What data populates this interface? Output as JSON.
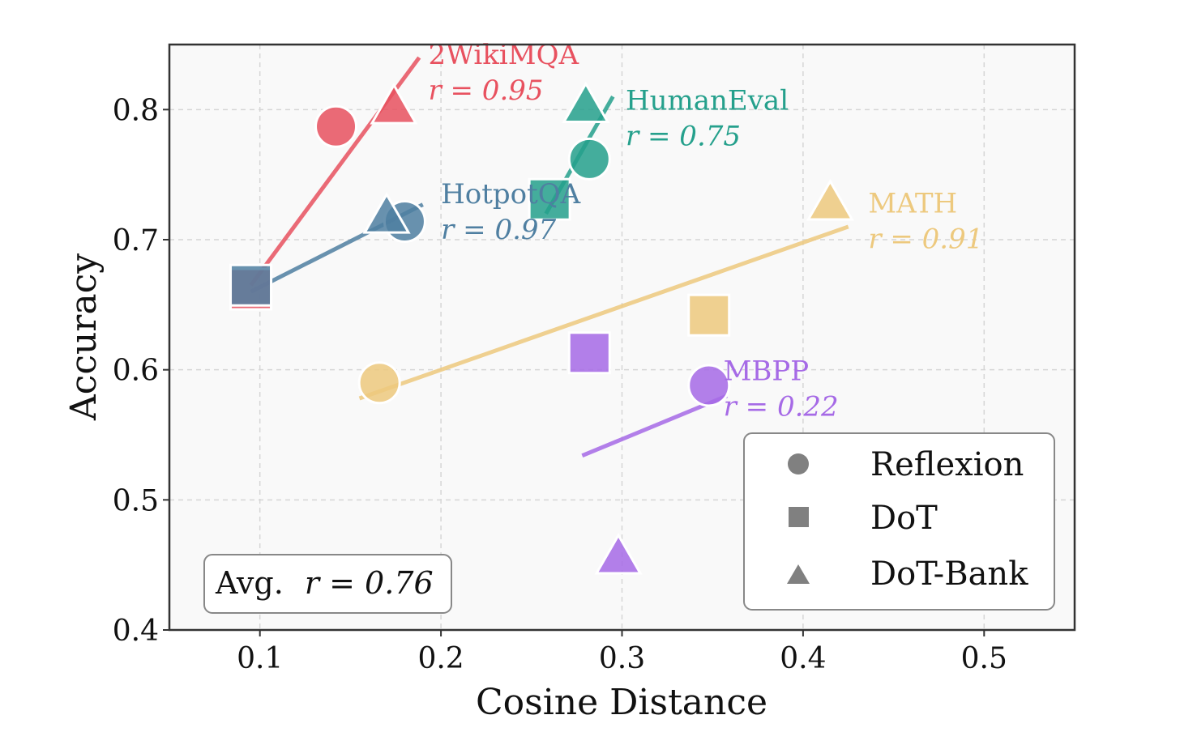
{
  "chart_data": {
    "type": "scatter",
    "xlabel": "Cosine Distance",
    "ylabel": "Accuracy",
    "xlim": [
      0.05,
      0.55
    ],
    "ylim": [
      0.4,
      0.85
    ],
    "xticks": [
      0.1,
      0.2,
      0.3,
      0.4,
      0.5
    ],
    "yticks": [
      0.4,
      0.5,
      0.6,
      0.7,
      0.8
    ],
    "xtick_labels": [
      "0.1",
      "0.2",
      "0.3",
      "0.4",
      "0.5"
    ],
    "ytick_labels": [
      "0.4",
      "0.5",
      "0.6",
      "0.7",
      "0.8"
    ],
    "grid": true,
    "series": [
      {
        "name": "2WikiMQA",
        "color": "#e8515f",
        "r_label": "r = 0.95",
        "points": [
          {
            "method": "Reflexion",
            "x": 0.142,
            "y": 0.787
          },
          {
            "method": "DoT",
            "x": 0.095,
            "y": 0.662
          },
          {
            "method": "DoT-Bank",
            "x": 0.174,
            "y": 0.802
          }
        ],
        "fit": {
          "x0": 0.095,
          "y0": 0.665,
          "x1": 0.188,
          "y1": 0.84
        },
        "label_anchor": {
          "x": 0.193,
          "y": 0.835
        }
      },
      {
        "name": "HotpotQA",
        "color": "#4f7fa1",
        "r_label": "r = 0.97",
        "points": [
          {
            "method": "Reflexion",
            "x": 0.18,
            "y": 0.714
          },
          {
            "method": "DoT",
            "x": 0.095,
            "y": 0.665
          },
          {
            "method": "DoT-Bank",
            "x": 0.17,
            "y": 0.718
          }
        ],
        "fit": {
          "x0": 0.095,
          "y0": 0.66,
          "x1": 0.19,
          "y1": 0.727
        },
        "label_anchor": {
          "x": 0.2,
          "y": 0.728
        }
      },
      {
        "name": "HumanEval",
        "color": "#25a08c",
        "r_label": "r = 0.75",
        "points": [
          {
            "method": "Reflexion",
            "x": 0.282,
            "y": 0.762
          },
          {
            "method": "DoT",
            "x": 0.26,
            "y": 0.731
          },
          {
            "method": "DoT-Bank",
            "x": 0.28,
            "y": 0.803
          }
        ],
        "fit": {
          "x0": 0.258,
          "y0": 0.72,
          "x1": 0.295,
          "y1": 0.81
        },
        "label_anchor": {
          "x": 0.302,
          "y": 0.8
        }
      },
      {
        "name": "MATH",
        "color": "#edc97e",
        "r_label": "r = 0.91",
        "points": [
          {
            "method": "Reflexion",
            "x": 0.166,
            "y": 0.59
          },
          {
            "method": "DoT",
            "x": 0.348,
            "y": 0.642
          },
          {
            "method": "DoT-Bank",
            "x": 0.415,
            "y": 0.728
          }
        ],
        "fit": {
          "x0": 0.155,
          "y0": 0.578,
          "x1": 0.425,
          "y1": 0.71
        },
        "label_anchor": {
          "x": 0.436,
          "y": 0.721
        }
      },
      {
        "name": "MBPP",
        "color": "#a66ae6",
        "r_label": "r = 0.22",
        "points": [
          {
            "method": "Reflexion",
            "x": 0.348,
            "y": 0.588
          },
          {
            "method": "DoT",
            "x": 0.282,
            "y": 0.613
          },
          {
            "method": "DoT-Bank",
            "x": 0.298,
            "y": 0.456
          }
        ],
        "fit": {
          "x0": 0.278,
          "y0": 0.534,
          "x1": 0.358,
          "y1": 0.58
        },
        "label_anchor": {
          "x": 0.356,
          "y": 0.592
        }
      }
    ],
    "legend": {
      "placement": "lower-right",
      "entries": [
        {
          "label": "Reflexion",
          "marker": "circle"
        },
        {
          "label": "DoT",
          "marker": "square"
        },
        {
          "label": "DoT-Bank",
          "marker": "triangle"
        }
      ]
    },
    "avg_annotation": {
      "prefix": "Avg.",
      "value": "r = 0.76"
    }
  }
}
